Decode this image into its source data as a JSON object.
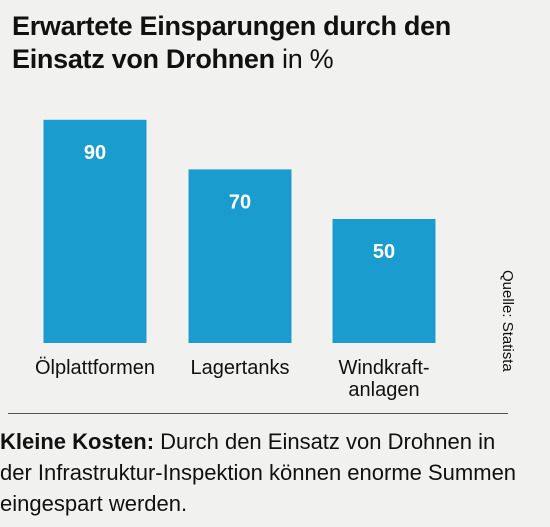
{
  "title": {
    "text": "Erwartete Einsparungen durch den Einsatz von Drohnen",
    "unit": "in %"
  },
  "source": "Quelle: Statista",
  "caption": {
    "lead": "Kleine Kosten:",
    "text": "Durch den Einsatz von Drohnen in der Infrastruktur-Inspektion können enorme Summen eingespart werden."
  },
  "colors": {
    "bar": "#1a9ccf",
    "value_label": "#ffffff",
    "background": "#f1f1f0"
  },
  "chart_data": {
    "type": "bar",
    "categories": [
      "Ölplattformen",
      "Lagertanks",
      "Windkraft-anlagen"
    ],
    "category_lines": [
      [
        "Ölplattformen"
      ],
      [
        "Lagertanks"
      ],
      [
        "Windkraft-",
        "anlagen"
      ]
    ],
    "values": [
      90,
      70,
      50
    ],
    "title": "Erwartete Einsparungen durch den Einsatz von Drohnen",
    "unit": "in %",
    "xlabel": "",
    "ylabel": "",
    "ylim": [
      0,
      100
    ],
    "grid": false,
    "legend": "none",
    "data_labels": "inside-top"
  }
}
